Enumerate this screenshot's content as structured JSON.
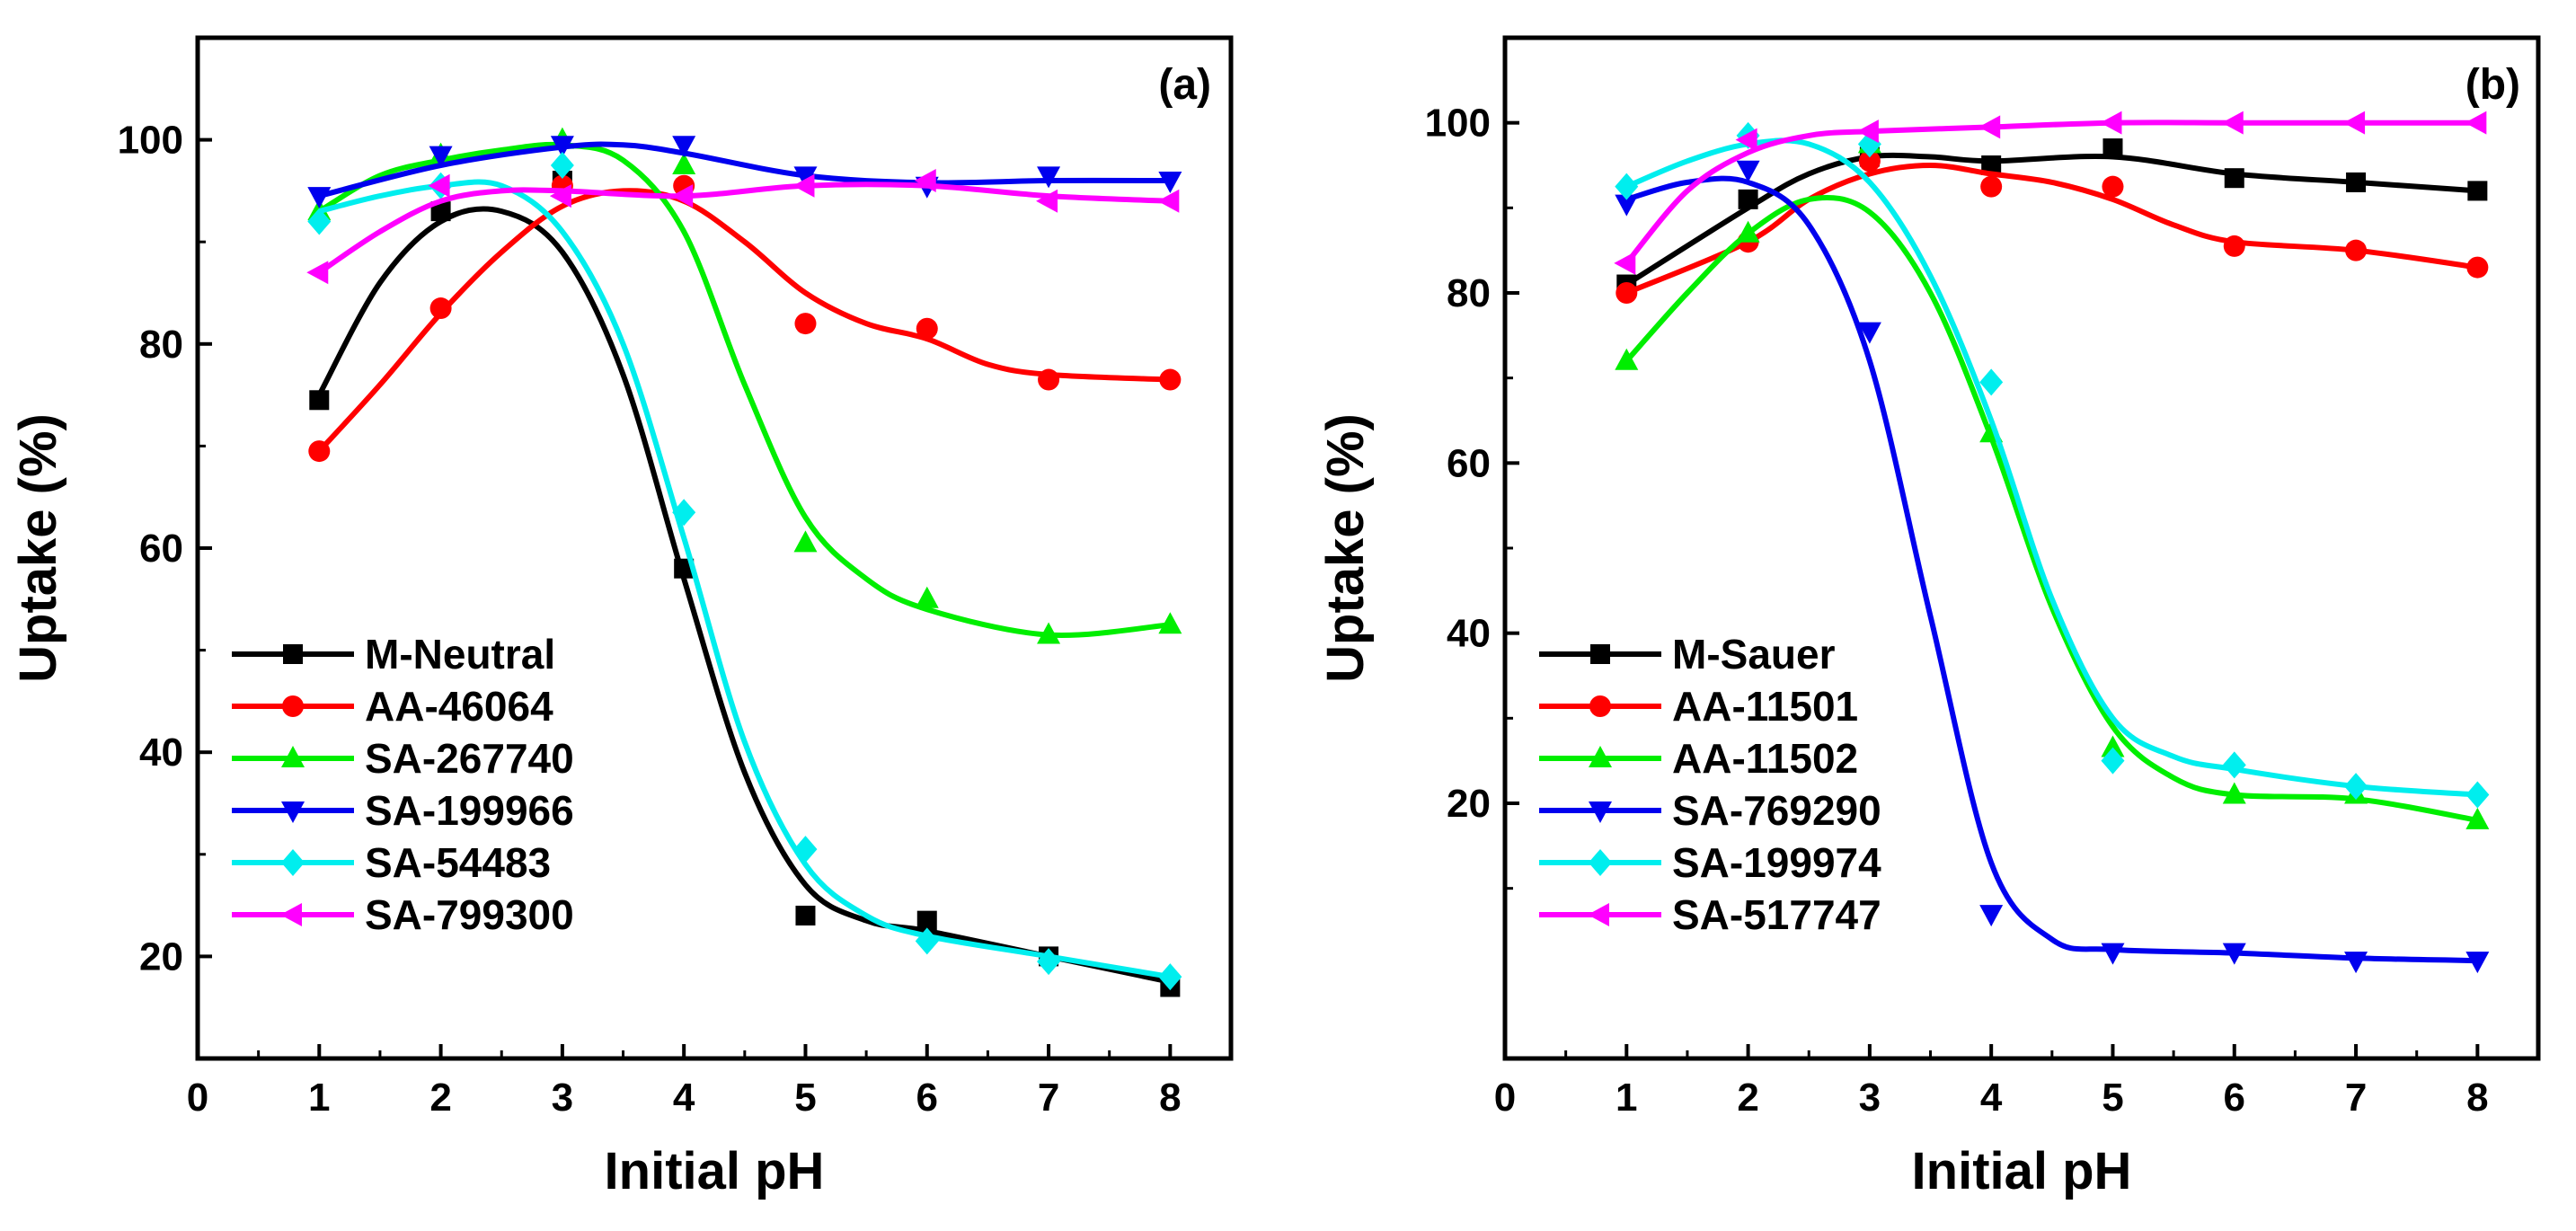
{
  "chart_data": [
    {
      "type": "line",
      "panel_label": "(a)",
      "xlabel": "Initial pH",
      "ylabel": "Uptake (%)",
      "xlim": [
        0,
        8.5
      ],
      "ylim": [
        10,
        110
      ],
      "xticks": [
        0,
        1,
        2,
        3,
        4,
        5,
        6,
        7,
        8
      ],
      "yticks": [
        20,
        40,
        60,
        80,
        100
      ],
      "grid": false,
      "legend_position": "lower-left",
      "series": [
        {
          "name": "M-Neutral",
          "color": "#000000",
          "marker": "square",
          "x": [
            1,
            2,
            3,
            4,
            5,
            6,
            7,
            8
          ],
          "y": [
            74.5,
            93,
            96,
            58,
            24,
            23.5,
            20,
            17
          ],
          "curve_x": [
            1,
            1.5,
            2,
            2.5,
            3,
            3.5,
            4,
            4.5,
            5,
            5.5,
            6,
            7,
            8
          ],
          "curve_y": [
            75,
            86,
            92,
            93,
            89,
            77,
            57,
            38,
            27,
            23.5,
            22.5,
            20,
            17.5
          ]
        },
        {
          "name": "AA-46064",
          "color": "#ff0000",
          "marker": "circle",
          "x": [
            1,
            2,
            3,
            4,
            5,
            6,
            7,
            8
          ],
          "y": [
            69.5,
            83.5,
            95.5,
            95.5,
            82,
            81.5,
            76.5,
            76.5
          ],
          "curve_x": [
            1,
            1.5,
            2,
            2.5,
            3,
            3.5,
            4,
            4.5,
            5,
            5.5,
            6,
            6.5,
            7,
            8
          ],
          "curve_y": [
            69.5,
            76,
            83,
            89,
            93.5,
            95,
            94,
            90,
            85,
            82,
            80.5,
            78,
            77,
            76.5
          ]
        },
        {
          "name": "SA-267740",
          "color": "#00ee00",
          "marker": "triangle-up",
          "x": [
            1,
            2,
            3,
            4,
            5,
            6,
            7,
            8
          ],
          "y": [
            93,
            98.5,
            100,
            97.5,
            60.5,
            55,
            51.5,
            52.5
          ],
          "curve_x": [
            1,
            1.5,
            2,
            2.5,
            3,
            3.5,
            4,
            4.5,
            5,
            5.5,
            6,
            7,
            8
          ],
          "curve_y": [
            93,
            96.5,
            98,
            99,
            99.5,
            98,
            91,
            76,
            63,
            57,
            54,
            51.5,
            52.5
          ]
        },
        {
          "name": "SA-199966",
          "color": "#0000ee",
          "marker": "triangle-down",
          "x": [
            1,
            2,
            3,
            4,
            5,
            6,
            7,
            8
          ],
          "y": [
            94.5,
            98.5,
            99.5,
            99.5,
            96.5,
            95.5,
            96.5,
            96
          ],
          "curve_x": [
            1,
            2,
            3,
            3.5,
            4,
            5,
            6,
            7,
            8
          ],
          "curve_y": [
            94.5,
            97.5,
            99.3,
            99.5,
            98.7,
            96.5,
            95.8,
            96,
            96
          ]
        },
        {
          "name": "SA-54483",
          "color": "#00eeee",
          "marker": "diamond",
          "x": [
            1,
            2,
            3,
            4,
            5,
            6,
            7,
            8
          ],
          "y": [
            92,
            95.5,
            97.5,
            63.5,
            30.5,
            21.5,
            19.5,
            18
          ],
          "curve_x": [
            1,
            1.5,
            2,
            2.5,
            3,
            3.5,
            4,
            4.5,
            5,
            5.5,
            6,
            7,
            8
          ],
          "curve_y": [
            93,
            94.5,
            95.5,
            95.5,
            91,
            80,
            61,
            41,
            29,
            24,
            22,
            20,
            18
          ]
        },
        {
          "name": "SA-799300",
          "color": "#ff00ff",
          "marker": "triangle-left",
          "x": [
            1,
            2,
            3,
            4,
            5,
            6,
            7,
            8
          ],
          "y": [
            87,
            95.5,
            94.5,
            94.5,
            95.5,
            96,
            94,
            94
          ],
          "curve_x": [
            1,
            1.5,
            2,
            2.5,
            3,
            4,
            5,
            6,
            7,
            8
          ],
          "curve_y": [
            87,
            91,
            94,
            95,
            95,
            94.5,
            95.5,
            95.5,
            94.5,
            94
          ]
        }
      ]
    },
    {
      "type": "line",
      "panel_label": "(b)",
      "xlabel": "Initial pH",
      "ylabel": "Uptake (%)",
      "xlim": [
        0,
        8.5
      ],
      "ylim": [
        -10,
        110
      ],
      "xticks": [
        0,
        1,
        2,
        3,
        4,
        5,
        6,
        7,
        8
      ],
      "yticks": [
        20,
        40,
        60,
        80,
        100
      ],
      "grid": false,
      "legend_position": "lower-left",
      "series": [
        {
          "name": "M-Sauer",
          "color": "#000000",
          "marker": "square",
          "x": [
            1,
            2,
            3,
            4,
            5,
            6,
            7,
            8
          ],
          "y": [
            81,
            91,
            96,
            95,
            97,
            93.5,
            93,
            92
          ],
          "curve_x": [
            1,
            2,
            2.5,
            3,
            3.5,
            4,
            5,
            6,
            7,
            8
          ],
          "curve_y": [
            81,
            90,
            94,
            96,
            96,
            95.5,
            96,
            94,
            93,
            92
          ]
        },
        {
          "name": "AA-11501",
          "color": "#ff0000",
          "marker": "circle",
          "x": [
            1,
            2,
            3,
            4,
            5,
            6,
            7,
            8
          ],
          "y": [
            80,
            86,
            95.5,
            92.5,
            92.5,
            85.5,
            85,
            83
          ],
          "curve_x": [
            1,
            2,
            2.5,
            3,
            3.5,
            4,
            4.5,
            5,
            5.5,
            6,
            7,
            8
          ],
          "curve_y": [
            80,
            86,
            91,
            94,
            95,
            94,
            93,
            91,
            88,
            86,
            85,
            83
          ]
        },
        {
          "name": "AA-11502",
          "color": "#00ee00",
          "marker": "triangle-up",
          "x": [
            1,
            2,
            3,
            4,
            5,
            6,
            7,
            8
          ],
          "y": [
            72,
            87,
            97.5,
            63.5,
            26.5,
            21,
            21,
            18
          ],
          "curve_x": [
            1,
            1.5,
            2,
            2.5,
            3,
            3.5,
            4,
            4.5,
            5,
            5.5,
            6,
            7,
            8
          ],
          "curve_y": [
            72,
            80,
            87,
            91,
            89.5,
            80,
            63,
            43,
            29,
            23,
            21,
            20.5,
            18
          ]
        },
        {
          "name": "SA-769290",
          "color": "#0000ee",
          "marker": "triangle-down",
          "x": [
            1,
            2,
            3,
            4,
            5,
            6,
            7,
            8
          ],
          "y": [
            90.5,
            94.5,
            75.5,
            7,
            2.5,
            2.5,
            1.5,
            1.5
          ],
          "curve_x": [
            1,
            1.5,
            2,
            2.5,
            3,
            3.5,
            4,
            4.5,
            5,
            6,
            7,
            8
          ],
          "curve_y": [
            91,
            93,
            93,
            88,
            72,
            42,
            13,
            4,
            2.8,
            2.4,
            1.8,
            1.5
          ]
        },
        {
          "name": "SA-199974",
          "color": "#00eeee",
          "marker": "diamond",
          "x": [
            1,
            2,
            3,
            4,
            5,
            6,
            7,
            8
          ],
          "y": [
            92.5,
            98.5,
            97.5,
            69.5,
            25,
            24.5,
            22,
            21
          ],
          "curve_x": [
            1,
            1.5,
            2,
            2.5,
            3,
            3.5,
            4,
            4.5,
            5,
            5.5,
            6,
            7,
            8
          ],
          "curve_y": [
            92.5,
            95.5,
            97.5,
            97.5,
            93,
            82,
            65,
            44,
            30,
            25.5,
            24,
            22,
            21
          ]
        },
        {
          "name": "SA-517747",
          "color": "#ff00ff",
          "marker": "triangle-left",
          "x": [
            1,
            2,
            3,
            4,
            5,
            6,
            7,
            8
          ],
          "y": [
            83.5,
            98,
            99,
            99.5,
            100,
            100,
            100,
            100
          ],
          "curve_x": [
            1,
            1.5,
            2,
            2.5,
            3,
            4,
            5,
            6,
            7,
            8
          ],
          "curve_y": [
            83.5,
            92,
            96.5,
            98.5,
            99,
            99.5,
            100,
            100,
            100,
            100
          ]
        }
      ]
    }
  ]
}
